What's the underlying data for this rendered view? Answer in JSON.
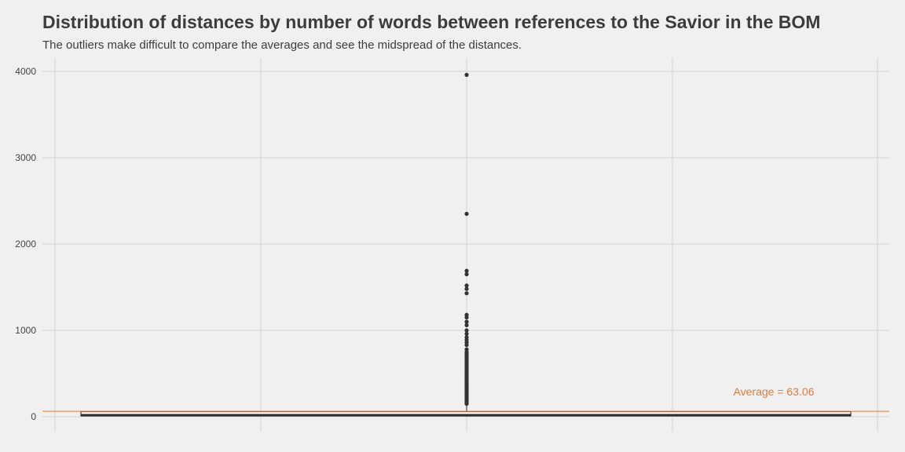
{
  "chart_data": {
    "type": "boxplot",
    "title": "Distribution of distances by number of words between references to the Savior in the BOM",
    "subtitle": "The outliers make difficult to compare the averages and see the midspread of the distances.",
    "xlabel": "",
    "ylabel": "",
    "ylim": [
      -150,
      4100
    ],
    "y_ticks": [
      0,
      1000,
      2000,
      3000,
      4000
    ],
    "grid": true,
    "box": {
      "whisker_low": 1,
      "q1": 8,
      "median": 20,
      "q3": 60,
      "whisker_high": 140
    },
    "outliers": [
      150,
      165,
      180,
      195,
      210,
      225,
      240,
      255,
      270,
      285,
      300,
      315,
      330,
      345,
      360,
      375,
      390,
      405,
      420,
      435,
      450,
      470,
      490,
      510,
      530,
      550,
      570,
      590,
      610,
      630,
      650,
      670,
      690,
      710,
      730,
      750,
      780,
      830,
      860,
      890,
      920,
      960,
      1000,
      1060,
      1100,
      1150,
      1180,
      1430,
      1480,
      1520,
      1650,
      1690,
      2350,
      3960
    ],
    "average": 63.06,
    "average_label": "Average = 63.06",
    "colors": {
      "average": "#e07b39",
      "box_fill": "#e8e8e8",
      "box_line": "#222222",
      "outlier": "#333333",
      "grid": "#d2d2d2"
    }
  }
}
